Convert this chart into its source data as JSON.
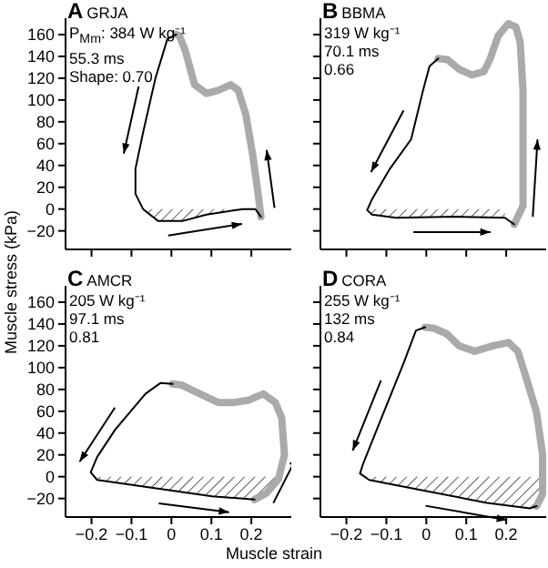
{
  "chart_data": [
    {
      "type": "line",
      "title": "A",
      "subtitle": "GRJA",
      "annotations": [
        "P$_{Mm}$: 384 W kg⁻¹",
        "55.3 ms",
        "Shape: 0.70"
      ],
      "xlim": [
        -0.265,
        0.3
      ],
      "ylim": [
        -37,
        175
      ],
      "xticks": [
        {
          "value": -0.2,
          "label": null
        },
        {
          "value": -0.1,
          "label": null
        },
        {
          "value": 0,
          "label": null
        },
        {
          "value": 0.1,
          "label": null
        },
        {
          "value": 0.2,
          "label": null
        }
      ],
      "yticks": [
        {
          "value": -20,
          "label": "−20"
        },
        0,
        20,
        40,
        60,
        80,
        100,
        120,
        140,
        160
      ],
      "tick_labels": "y",
      "series": [
        {
          "color": "#aaaaaa",
          "x": [
            0.224,
            0.217,
            0.202,
            0.186,
            0.167,
            0.148,
            0.118,
            0.088,
            0.058,
            0.035,
            0.02,
            0.012
          ],
          "values": [
            -7,
            14,
            53,
            87,
            109,
            114,
            109,
            106,
            114,
            145,
            159,
            160
          ]
        },
        {
          "color": "#000000",
          "x": [
            0.012,
            -0.01,
            -0.04,
            -0.071,
            -0.09,
            -0.09,
            -0.071,
            -0.033,
            0.027,
            0.088,
            0.179,
            0.21,
            0.224
          ],
          "values": [
            160,
            156,
            120,
            70,
            37,
            14,
            0,
            -11,
            -11,
            -5,
            0,
            0,
            -7
          ]
        },
        {
          "type": "area",
          "color": "#333333",
          "x": [
            -0.071,
            -0.033,
            0.027,
            0.088,
            0.179
          ],
          "values": [
            0,
            -11,
            -11,
            -5,
            0
          ]
        }
      ]
    },
    {
      "type": "line",
      "title": "B",
      "subtitle": "BBMA",
      "annotations": [
        "319 W kg⁻¹",
        "70.1 ms",
        "0.66"
      ],
      "xlim": [
        -0.265,
        0.3
      ],
      "ylim": [
        -37,
        175
      ],
      "xticks": [
        {
          "value": -0.2,
          "label": null
        },
        {
          "value": -0.1,
          "label": null
        },
        {
          "value": 0,
          "label": null
        },
        {
          "value": 0.1,
          "label": null
        },
        {
          "value": 0.2,
          "label": null
        }
      ],
      "yticks": [
        {
          "value": -20,
          "label": null
        },
        {
          "value": 0,
          "label": null
        },
        {
          "value": 20,
          "label": null
        },
        {
          "value": 40,
          "label": null
        },
        {
          "value": 60,
          "label": null
        },
        {
          "value": 80,
          "label": null
        },
        {
          "value": 100,
          "label": null
        },
        {
          "value": 120,
          "label": null
        },
        {
          "value": 140,
          "label": null
        },
        {
          "value": 160,
          "label": null
        }
      ],
      "tick_labels": false,
      "series": [
        {
          "color": "#aaaaaa",
          "x": [
            0.22,
            0.242,
            0.242,
            0.242,
            0.235,
            0.224,
            0.205,
            0.18,
            0.159,
            0.144,
            0.114,
            0.083,
            0.053,
            0.03
          ],
          "values": [
            -14,
            3,
            53,
            109,
            153,
            167,
            170,
            159,
            137,
            126,
            123,
            128,
            137,
            138
          ]
        },
        {
          "color": "#000000",
          "x": [
            0.03,
            0.008,
            -0.008,
            -0.038,
            -0.091,
            -0.136,
            -0.148,
            -0.136,
            -0.076,
            0.076,
            0.197,
            0.22
          ],
          "values": [
            138,
            131,
            109,
            64,
            37,
            9,
            -1,
            -5,
            -8,
            -7,
            -8,
            -14
          ]
        },
        {
          "type": "area",
          "color": "#333333",
          "x": [
            -0.148,
            -0.136,
            -0.076,
            0.076,
            0.197
          ],
          "values": [
            -1,
            -5,
            -8,
            -7,
            -8
          ]
        }
      ]
    },
    {
      "type": "line",
      "title": "C",
      "subtitle": "AMCR",
      "annotations": [
        "205 W kg⁻¹",
        "97.1 ms",
        "0.81"
      ],
      "xlabel": "Muscle strain",
      "ylabel": "Muscle stress (kPa)",
      "xlim": [
        -0.265,
        0.3
      ],
      "ylim": [
        -37,
        175
      ],
      "xticks": [
        {
          "value": -0.2,
          "label": "−0.2"
        },
        {
          "value": -0.1,
          "label": "−0.1"
        },
        0,
        0.1,
        0.2
      ],
      "yticks": [
        {
          "value": -20,
          "label": "−20"
        },
        0,
        20,
        40,
        60,
        80,
        100,
        120,
        140,
        160
      ],
      "series": [
        {
          "color": "#aaaaaa",
          "x": [
            0.208,
            0.238,
            0.268,
            0.283,
            0.276,
            0.26,
            0.23,
            0.192,
            0.155,
            0.117,
            0.071,
            0.026,
            0.003
          ],
          "values": [
            -21,
            -15,
            -2,
            20,
            54,
            68,
            76,
            70,
            68,
            68,
            76,
            84,
            85
          ]
        },
        {
          "color": "#000000",
          "x": [
            0.003,
            -0.027,
            -0.065,
            -0.141,
            -0.186,
            -0.202,
            -0.186,
            -0.05,
            0.102,
            0.208
          ],
          "values": [
            85,
            86,
            76,
            43,
            18,
            4,
            -3,
            -10,
            -18,
            -21
          ]
        },
        {
          "type": "area",
          "color": "#333333",
          "x": [
            -0.19,
            -0.05,
            0.102,
            0.208,
            0.238,
            0.268
          ],
          "values": [
            -2,
            -10,
            -18,
            -21,
            -15,
            -2
          ]
        }
      ]
    },
    {
      "type": "line",
      "title": "D",
      "subtitle": "CORA",
      "annotations": [
        "255 W kg⁻¹",
        "132 ms",
        "0.84"
      ],
      "xlim": [
        -0.265,
        0.3
      ],
      "ylim": [
        -37,
        175
      ],
      "xticks": [
        {
          "value": -0.2,
          "label": "−0.2"
        },
        {
          "value": -0.1,
          "label": "−0.1"
        },
        0,
        0.1,
        0.2
      ],
      "yticks": [
        {
          "value": -20,
          "label": null
        },
        {
          "value": 0,
          "label": null
        },
        {
          "value": 20,
          "label": null
        },
        {
          "value": 40,
          "label": null
        },
        {
          "value": 60,
          "label": null
        },
        {
          "value": 80,
          "label": null
        },
        {
          "value": 100,
          "label": null
        },
        {
          "value": 120,
          "label": null
        },
        {
          "value": 140,
          "label": null
        },
        {
          "value": 160,
          "label": null
        }
      ],
      "tick_labels": "x",
      "series": [
        {
          "color": "#aaaaaa",
          "x": [
            0.276,
            0.291,
            0.291,
            0.276,
            0.253,
            0.229,
            0.206,
            0.167,
            0.121,
            0.082,
            0.051,
            0.02,
            -0.003
          ],
          "values": [
            -27,
            -16,
            20,
            59,
            87,
            115,
            123,
            120,
            115,
            120,
            131,
            136,
            137
          ]
        },
        {
          "color": "#000000",
          "x": [
            -0.003,
            -0.026,
            -0.057,
            -0.112,
            -0.158,
            -0.166,
            -0.143,
            -0.003,
            0.152,
            0.26,
            0.276
          ],
          "values": [
            137,
            134,
            104,
            54,
            12,
            3,
            -3,
            -13,
            -24,
            -29,
            -27
          ]
        },
        {
          "type": "area",
          "color": "#333333",
          "x": [
            -0.16,
            -0.143,
            -0.003,
            0.152,
            0.26,
            0.276,
            0.291
          ],
          "values": [
            0,
            -3,
            -13,
            -24,
            -29,
            -27,
            -16
          ]
        }
      ]
    }
  ]
}
